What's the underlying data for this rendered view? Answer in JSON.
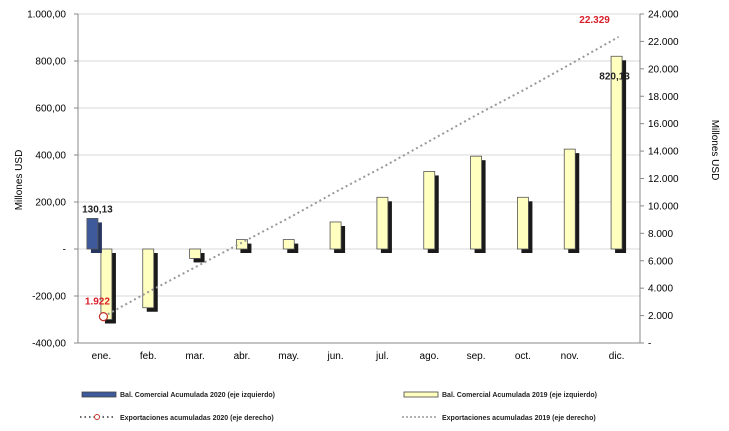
{
  "chart_data": {
    "type": "bar",
    "categories": [
      "ene.",
      "feb.",
      "mar.",
      "abr.",
      "may.",
      "jun.",
      "jul.",
      "ago.",
      "sep.",
      "oct.",
      "nov.",
      "dic."
    ],
    "y_left": {
      "label": "Millones USD",
      "min": -400,
      "max": 1000,
      "ticks": [
        -400,
        -200,
        0,
        200,
        400,
        600,
        800,
        1000
      ],
      "tick_labels": [
        "-400,00",
        "-200,00",
        "-",
        "200,00",
        "400,00",
        "600,00",
        "800,00",
        "1.000,00"
      ]
    },
    "y_right": {
      "label": "Millones USD",
      "min": 0,
      "max": 24000,
      "ticks": [
        0,
        2000,
        4000,
        6000,
        8000,
        10000,
        12000,
        14000,
        16000,
        18000,
        20000,
        22000,
        24000
      ],
      "tick_labels": [
        "-",
        "2.000",
        "4.000",
        "6.000",
        "8.000",
        "10.000",
        "12.000",
        "14.000",
        "16.000",
        "18.000",
        "20.000",
        "22.000",
        "24.000"
      ]
    },
    "series": [
      {
        "name": "Bal. Comercial Acumulada 2020 (eje izquierdo)",
        "kind": "bar",
        "axis": "left",
        "color": "#3f5a9a",
        "values": [
          130.13,
          null,
          null,
          null,
          null,
          null,
          null,
          null,
          null,
          null,
          null,
          null
        ]
      },
      {
        "name": "Bal. Comercial Acumulada 2019 (eje izquierdo)",
        "kind": "bar",
        "axis": "left",
        "color": "#ffffc0",
        "values": [
          -300,
          -250,
          -40,
          40,
          40,
          115,
          220,
          330,
          395,
          220,
          425,
          820.13
        ]
      },
      {
        "name": "Exportaciones acumuladas 2020 (eje derecho)",
        "kind": "line",
        "axis": "right",
        "color": "#c0302a",
        "values": [
          1922,
          null,
          null,
          null,
          null,
          null,
          null,
          null,
          null,
          null,
          null,
          null
        ]
      },
      {
        "name": "Exportaciones acumuladas 2019 (eje derecho)",
        "kind": "line",
        "axis": "right",
        "color": "#999999",
        "values": [
          1922,
          3800,
          5600,
          7400,
          9200,
          11100,
          12900,
          14800,
          16700,
          18500,
          20400,
          22329
        ]
      }
    ],
    "data_labels": [
      {
        "text": "130,13",
        "series": 0,
        "index": 0,
        "color": "#222222"
      },
      {
        "text": "820,13",
        "series": 1,
        "index": 11,
        "color": "#222222"
      },
      {
        "text": "1.922",
        "series": 2,
        "index": 0,
        "color": "#d81e2a"
      },
      {
        "text": "22.329",
        "series": 3,
        "index": 11,
        "color": "#d81e2a"
      }
    ],
    "grid": true,
    "legend_position": "bottom"
  }
}
